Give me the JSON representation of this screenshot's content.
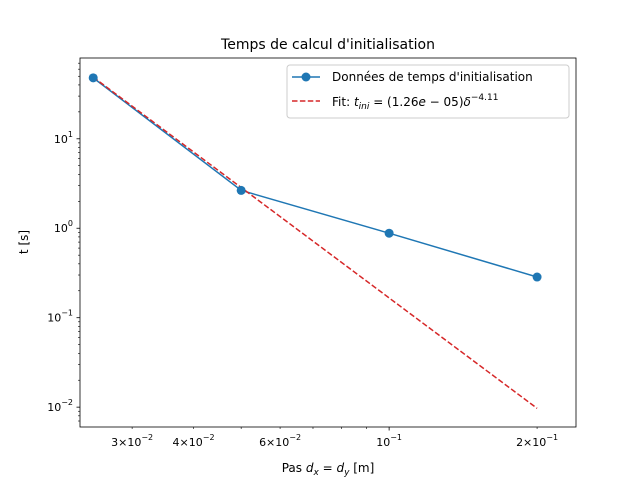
{
  "chart_data": {
    "type": "line",
    "title": "Temps de calcul d'initialisation",
    "xlabel": "Pas d_x = d_y [m]",
    "xlabel_parts": {
      "prefix": "Pas ",
      "math": "d",
      "sub1": "x",
      "eq": " = ",
      "math2": "d",
      "sub2": "y",
      "suffix": " [m]"
    },
    "ylabel": "t [s]",
    "xscale": "log",
    "yscale": "log",
    "xlim": [
      0.0235,
      0.24
    ],
    "ylim": [
      0.006,
      80
    ],
    "x_ticks": [
      {
        "value": 0.03,
        "mantissa": "3",
        "exponent": "−2"
      },
      {
        "value": 0.04,
        "mantissa": "4",
        "exponent": "−2"
      },
      {
        "value": 0.06,
        "mantissa": "6",
        "exponent": "−2"
      },
      {
        "value": 0.1,
        "mantissa": "",
        "exponent": "−1"
      },
      {
        "value": 0.2,
        "mantissa": "2",
        "exponent": "−1"
      }
    ],
    "y_ticks": [
      {
        "value": 0.01,
        "exponent": "−2"
      },
      {
        "value": 0.1,
        "exponent": "−1"
      },
      {
        "value": 1,
        "exponent": "0"
      },
      {
        "value": 10,
        "exponent": "1"
      }
    ],
    "series": [
      {
        "name": "Données de temps d'initialisation",
        "color": "#1f77b4",
        "style": "solid-marker",
        "x": [
          0.025,
          0.05,
          0.1,
          0.2
        ],
        "y": [
          48,
          2.65,
          0.88,
          0.285
        ]
      },
      {
        "name": "Fit: t_ini = (1.26e−05)δ^−4.11",
        "legend_parts": {
          "prefix": "Fit: ",
          "t": "t",
          "sub": "ini",
          "mid": " = (1.26",
          "e": "e",
          "minus": " − 05)",
          "delta": "δ",
          "sup": "−4.11"
        },
        "color": "#d62728",
        "style": "dashed",
        "x": [
          0.025,
          0.2
        ],
        "y": [
          48.9,
          0.0097
        ]
      }
    ],
    "legend_position": "top-right",
    "grid": false
  }
}
